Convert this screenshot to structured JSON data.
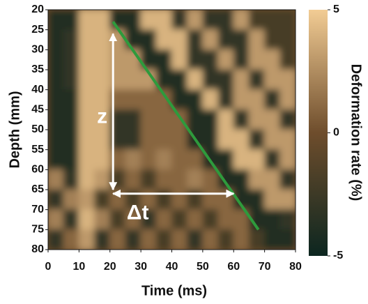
{
  "chart_data": {
    "type": "heatmap",
    "x_label": "Time (ms)",
    "y_label": "Depth (mm)",
    "colorbar_label": "Deformation rate (%)",
    "xlim": [
      0,
      80
    ],
    "xticks": [
      0,
      10,
      20,
      30,
      40,
      50,
      60,
      70,
      80
    ],
    "ylim": [
      20,
      80
    ],
    "yticks": [
      20,
      25,
      30,
      35,
      40,
      45,
      50,
      55,
      60,
      65,
      70,
      75,
      80
    ],
    "invert_y": true,
    "clim": [
      -5,
      5
    ],
    "cticks": [
      -5,
      0,
      5
    ],
    "colormap": [
      "#0c2620",
      "#6e4d2c",
      "#f2cc94"
    ],
    "x": [
      2.5,
      7.5,
      12.5,
      17.5,
      22.5,
      27.5,
      32.5,
      37.5,
      42.5,
      47.5,
      52.5,
      57.5,
      62.5,
      67.5,
      72.5,
      77.5
    ],
    "y": [
      22.5,
      27.5,
      32.5,
      37.5,
      42.5,
      47.5,
      52.5,
      57.5,
      62.5,
      67.5,
      72.5,
      77.5
    ],
    "values": [
      [
        -4,
        -4,
        4,
        4,
        -4,
        -4,
        4,
        4,
        -3,
        3,
        -3,
        -3,
        3,
        -2,
        -2,
        -2
      ],
      [
        -4,
        -3,
        4,
        4,
        3,
        -4,
        -4,
        4,
        4,
        -3,
        3,
        -3,
        -3,
        3,
        -2,
        -2
      ],
      [
        -4,
        -3,
        4,
        4,
        3,
        3,
        -4,
        -4,
        4,
        -3,
        -3,
        3,
        -3,
        3,
        3,
        -2
      ],
      [
        -4,
        -3,
        4,
        4,
        3,
        3,
        3,
        -4,
        -4,
        4,
        -3,
        -3,
        3,
        -3,
        3,
        3
      ],
      [
        -4,
        -4,
        4,
        4,
        1,
        1,
        1,
        1,
        -4,
        -4,
        4,
        -3,
        3,
        3,
        -3,
        3
      ],
      [
        -4,
        -4,
        4,
        4,
        -3,
        -3,
        1,
        1,
        1,
        -4,
        -4,
        4,
        -3,
        3,
        3,
        -3
      ],
      [
        -4,
        -4,
        4,
        4,
        -3,
        -3,
        1,
        1,
        1,
        -4,
        -4,
        4,
        4,
        -3,
        3,
        3
      ],
      [
        -4,
        -4,
        4,
        4,
        1,
        2,
        1,
        2,
        1,
        1,
        -4,
        -4,
        4,
        4,
        -3,
        3
      ],
      [
        2,
        -3,
        4,
        3,
        -2,
        1,
        -2,
        1,
        1,
        2,
        1,
        -4,
        -4,
        3,
        3,
        -3
      ],
      [
        -3,
        2,
        3,
        -2,
        1,
        -2,
        1,
        -2,
        1,
        -2,
        1,
        1,
        -4,
        -4,
        3,
        3
      ],
      [
        2,
        -3,
        4,
        2,
        -2,
        1,
        -3,
        1,
        -2,
        1,
        -2,
        1,
        1,
        -4,
        -4,
        -3
      ],
      [
        -3,
        1,
        3,
        -3,
        1,
        -3,
        1,
        -2,
        1,
        -3,
        1,
        -2,
        1,
        -2,
        -4,
        -4
      ]
    ],
    "lines": [
      {
        "x": [
          21,
          68
        ],
        "y": [
          23,
          75
        ],
        "color": "#2e9a3c"
      }
    ],
    "arrows": [
      {
        "x": [
          21,
          21
        ],
        "y": [
          26,
          65
        ],
        "color": "#ffffff"
      },
      {
        "x": [
          21,
          60
        ],
        "y": [
          66,
          66
        ],
        "color": "#ffffff"
      }
    ],
    "annotations": [
      {
        "text": "z",
        "x": 17.5,
        "y": 47
      },
      {
        "text": "Δt",
        "x": 29,
        "y": 71
      }
    ]
  }
}
